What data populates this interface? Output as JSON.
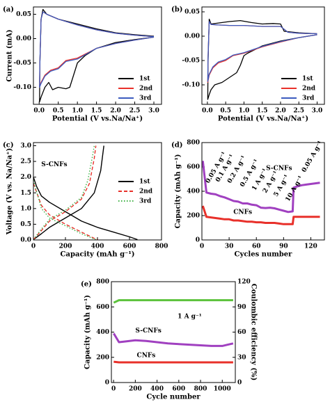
{
  "chart_data": [
    {
      "type": "line",
      "label": "(a)",
      "xlabel": "Potential (V vs.Na/Na⁺)",
      "ylabel": "Current (mA)",
      "xlim": [
        -0.15,
        3.2
      ],
      "ylim": [
        -0.135,
        0.065
      ],
      "xticks": [
        {
          "value": 0,
          "label": "0.0"
        },
        0.5,
        {
          "value": 1,
          "label": "1.0"
        },
        1.5,
        {
          "value": 2,
          "label": "2.0"
        },
        2.5,
        {
          "value": 3,
          "label": "3.0"
        }
      ],
      "yticks": [
        {
          "value": -0.1,
          "label": "-0.10"
        },
        {
          "value": -0.05,
          "label": "-0.05"
        },
        {
          "value": 0,
          "label": "0.00"
        },
        0.05
      ],
      "legend": "lower right",
      "series": [
        {
          "name": "1st",
          "color": "#000000",
          "x": [
            3.0,
            2.5,
            2.0,
            1.5,
            1.2,
            1.0,
            0.9,
            0.8,
            0.7,
            0.5,
            0.35,
            0.25,
            0.15,
            0.05,
            0.01,
            0.02,
            0.05,
            0.1,
            0.2,
            0.5,
            1.0,
            1.5,
            2.0,
            2.5,
            3.0
          ],
          "values": [
            0.003,
            -0.002,
            -0.008,
            -0.02,
            -0.035,
            -0.05,
            -0.075,
            -0.1,
            -0.103,
            -0.1,
            -0.105,
            -0.09,
            -0.1,
            -0.12,
            -0.13,
            -0.05,
            0.04,
            0.06,
            0.05,
            0.04,
            0.03,
            0.02,
            0.012,
            0.008,
            0.005
          ]
        },
        {
          "name": "2nd",
          "color": "#e8302a",
          "x": [
            3.0,
            2.5,
            2.0,
            1.5,
            1.0,
            0.7,
            0.5,
            0.3,
            0.15,
            0.05,
            0.01,
            0.02,
            0.05,
            0.1,
            0.2,
            0.5,
            1.0,
            1.5,
            2.0,
            2.5,
            3.0
          ],
          "values": [
            0.003,
            -0.003,
            -0.01,
            -0.02,
            -0.04,
            -0.045,
            -0.06,
            -0.065,
            -0.075,
            -0.09,
            -0.1,
            -0.05,
            0.04,
            0.055,
            0.05,
            0.04,
            0.028,
            0.018,
            0.011,
            0.007,
            0.004
          ]
        },
        {
          "name": "3rd",
          "color": "#3b5bbf",
          "x": [
            3.0,
            2.5,
            2.0,
            1.5,
            1.0,
            0.7,
            0.5,
            0.3,
            0.15,
            0.05,
            0.01,
            0.02,
            0.05,
            0.1,
            0.2,
            0.5,
            1.0,
            1.5,
            2.0,
            2.5,
            3.0
          ],
          "values": [
            0.003,
            -0.003,
            -0.01,
            -0.02,
            -0.042,
            -0.047,
            -0.062,
            -0.067,
            -0.077,
            -0.092,
            -0.1,
            -0.05,
            0.04,
            0.055,
            0.05,
            0.04,
            0.028,
            0.018,
            0.011,
            0.007,
            0.004
          ]
        }
      ]
    },
    {
      "type": "line",
      "label": "(b)",
      "xlabel": "Potential (V vs.Na/Na⁺)",
      "xlim": [
        -0.15,
        3.2
      ],
      "ylim": [
        -0.14,
        0.06
      ],
      "xticks": [
        {
          "value": 0,
          "label": "0.0"
        },
        0.5,
        {
          "value": 1,
          "label": "1.0"
        },
        1.5,
        {
          "value": 2,
          "label": "2.0"
        },
        2.5,
        {
          "value": 3,
          "label": "3.0"
        }
      ],
      "yticks": [
        {
          "value": -0.1,
          "label": "-0.10"
        },
        {
          "value": -0.05,
          "label": "-0.05"
        },
        {
          "value": 0,
          "label": "0.00"
        },
        0.05
      ],
      "legend": "lower right",
      "series": [
        {
          "name": "1st",
          "color": "#000000",
          "x": [
            3.0,
            2.5,
            2.0,
            1.5,
            1.1,
            1.0,
            0.9,
            0.8,
            0.6,
            0.4,
            0.2,
            0.1,
            0.05,
            0.01,
            0.02,
            0.05,
            0.1,
            0.3,
            0.6,
            0.9,
            1.2,
            1.5,
            1.8,
            2.0,
            2.1,
            2.5,
            3.0
          ],
          "values": [
            0.003,
            -0.003,
            -0.01,
            -0.02,
            -0.035,
            -0.04,
            -0.06,
            -0.075,
            -0.085,
            -0.095,
            -0.1,
            -0.11,
            -0.12,
            -0.13,
            -0.05,
            0.035,
            0.025,
            0.027,
            0.03,
            0.032,
            0.028,
            0.025,
            0.026,
            0.025,
            0.01,
            0.007,
            0.005
          ]
        },
        {
          "name": "2nd",
          "color": "#e8302a",
          "x": [
            3.0,
            2.5,
            2.0,
            1.5,
            1.0,
            0.7,
            0.5,
            0.3,
            0.15,
            0.05,
            0.01,
            0.02,
            0.05,
            0.1,
            0.3,
            0.6,
            1.0,
            1.5,
            2.0,
            2.2,
            2.5,
            3.0
          ],
          "values": [
            0.003,
            -0.003,
            -0.012,
            -0.022,
            -0.035,
            -0.04,
            -0.05,
            -0.055,
            -0.065,
            -0.08,
            -0.095,
            -0.04,
            0.03,
            0.024,
            0.023,
            0.022,
            0.022,
            0.02,
            0.02,
            0.008,
            0.006,
            0.005
          ]
        },
        {
          "name": "3rd",
          "color": "#3b5bbf",
          "x": [
            3.0,
            2.5,
            2.0,
            1.5,
            1.0,
            0.7,
            0.5,
            0.3,
            0.15,
            0.05,
            0.01,
            0.02,
            0.05,
            0.1,
            0.3,
            0.6,
            1.0,
            1.5,
            2.0,
            2.2,
            2.5,
            3.0
          ],
          "values": [
            0.003,
            -0.003,
            -0.011,
            -0.021,
            -0.034,
            -0.039,
            -0.048,
            -0.053,
            -0.063,
            -0.078,
            -0.093,
            -0.04,
            0.03,
            0.024,
            0.023,
            0.022,
            0.022,
            0.02,
            0.02,
            0.008,
            0.006,
            0.005
          ]
        }
      ]
    },
    {
      "type": "line",
      "label": "(c)",
      "xlabel": "Capacity (mAh g⁻¹)",
      "ylabel": "Voltage (V vs. Na/Na⁺)",
      "xlim": [
        0,
        800
      ],
      "ylim": [
        0,
        3.1
      ],
      "xticks": [
        0,
        200,
        400,
        600,
        800
      ],
      "yticks": [
        {
          "value": 0,
          "label": "0.0"
        },
        0.5,
        {
          "value": 1,
          "label": "1.0"
        },
        1.5,
        {
          "value": 2,
          "label": "2.0"
        },
        2.5,
        {
          "value": 3,
          "label": "3.0"
        }
      ],
      "legend": "center right",
      "annotations": [
        "S-CNFs"
      ],
      "series": [
        {
          "name": "1st",
          "color": "#000000",
          "dash": "solid",
          "x": [
            0,
            20,
            50,
            100,
            200,
            300,
            400,
            500,
            600,
            650,
            null,
            0,
            50,
            100,
            200,
            300,
            380,
            420,
            440
          ],
          "values": [
            2.0,
            1.7,
            1.4,
            1.2,
            0.9,
            0.6,
            0.4,
            0.25,
            0.1,
            0.01,
            null,
            0.01,
            0.2,
            0.4,
            0.7,
            1.0,
            1.5,
            2.2,
            3.0
          ]
        },
        {
          "name": "2nd",
          "color": "#e8302a",
          "dash": "dashed",
          "x": [
            0,
            50,
            100,
            200,
            300,
            380,
            400,
            null,
            0,
            50,
            100,
            200,
            300,
            350,
            380,
            390
          ],
          "values": [
            1.8,
            1.1,
            0.8,
            0.5,
            0.25,
            0.05,
            0.01,
            null,
            0.01,
            0.3,
            0.6,
            0.9,
            1.3,
            1.8,
            2.6,
            3.0
          ]
        },
        {
          "name": "3rd",
          "color": "#3cb043",
          "dash": "dotted",
          "x": [
            0,
            50,
            100,
            200,
            300,
            370,
            390,
            null,
            0,
            50,
            100,
            200,
            300,
            340,
            370,
            380
          ],
          "values": [
            1.9,
            1.0,
            0.7,
            0.45,
            0.2,
            0.05,
            0.01,
            null,
            0.01,
            0.35,
            0.65,
            0.95,
            1.35,
            1.9,
            2.7,
            3.0
          ]
        }
      ]
    },
    {
      "type": "line",
      "label": "(d)",
      "xlabel": "Cycles number",
      "ylabel": "Capacity (mAh g⁻¹)",
      "xlim": [
        0,
        135
      ],
      "ylim": [
        0,
        800
      ],
      "xticks": [
        0,
        30,
        60,
        90,
        120
      ],
      "yticks": [
        0,
        200,
        400,
        600,
        800
      ],
      "annotations": [
        "0.05 A g⁻¹",
        "0.1 A g⁻¹",
        "0.2 A g⁻¹",
        "0.5 A g⁻¹",
        "1 A g⁻¹",
        "2 A g⁻¹",
        "5 A g⁻¹",
        "10 A g⁻¹",
        "0.05 A g⁻¹"
      ],
      "series": [
        {
          "name": "S-CNFs",
          "color": "#a040c0",
          "x": [
            1,
            5,
            10,
            15,
            20,
            25,
            30,
            35,
            40,
            45,
            50,
            55,
            60,
            65,
            70,
            75,
            80,
            85,
            90,
            95,
            100,
            101,
            105,
            110,
            115,
            120,
            125,
            130
          ],
          "values": [
            650,
            390,
            380,
            375,
            360,
            350,
            335,
            320,
            315,
            300,
            300,
            290,
            285,
            265,
            262,
            265,
            260,
            250,
            240,
            230,
            235,
            430,
            440,
            450,
            455,
            460,
            465,
            470
          ]
        },
        {
          "name": "CNFs",
          "color": "#e8302a",
          "x": [
            1,
            5,
            10,
            15,
            20,
            25,
            30,
            35,
            40,
            45,
            50,
            55,
            60,
            65,
            70,
            75,
            80,
            85,
            90,
            95,
            100,
            101,
            105,
            110,
            115,
            120,
            125,
            130
          ],
          "values": [
            280,
            190,
            185,
            180,
            175,
            170,
            170,
            160,
            160,
            155,
            150,
            150,
            145,
            145,
            140,
            140,
            140,
            135,
            130,
            130,
            130,
            190,
            190,
            190,
            190,
            190,
            190,
            190
          ]
        }
      ]
    },
    {
      "type": "line",
      "label": "(e)",
      "xlabel": "Cycle number",
      "ylabel": "Capacity (mAh g⁻¹)",
      "y2label": "Coulombic efficiency (%)",
      "xlim": [
        -20,
        1120
      ],
      "ylim": [
        0,
        800
      ],
      "y2lim": [
        0,
        120
      ],
      "xticks": [
        0,
        200,
        400,
        600,
        800,
        1000
      ],
      "yticks": [
        0,
        200,
        400,
        600,
        800
      ],
      "y2ticks": [
        0,
        30,
        60,
        90,
        120
      ],
      "annotations": [
        "1 A g⁻¹"
      ],
      "series": [
        {
          "color": "#5cc23c",
          "axis": "y2",
          "x": [
            1,
            50,
            100,
            200,
            300,
            400,
            500,
            600,
            700,
            800,
            900,
            950,
            1000,
            1050,
            1100
          ],
          "values": [
            95,
            98,
            98,
            98,
            98,
            98,
            98,
            98,
            98,
            98,
            98,
            98,
            98,
            98,
            98
          ]
        },
        {
          "name": "S-CNFs",
          "color": "#a040c0",
          "x": [
            1,
            50,
            100,
            200,
            300,
            400,
            500,
            600,
            700,
            800,
            900,
            950,
            1000,
            1050,
            1100
          ],
          "values": [
            390,
            320,
            325,
            335,
            330,
            320,
            310,
            305,
            300,
            295,
            290,
            290,
            290,
            300,
            310
          ]
        },
        {
          "name": "CNFs",
          "color": "#e8302a",
          "x": [
            1,
            50,
            100,
            200,
            300,
            400,
            500,
            600,
            700,
            800,
            900,
            950,
            1000,
            1050,
            1100
          ],
          "values": [
            165,
            160,
            160,
            160,
            160,
            160,
            160,
            160,
            160,
            160,
            160,
            160,
            160,
            160,
            160
          ]
        }
      ]
    }
  ]
}
